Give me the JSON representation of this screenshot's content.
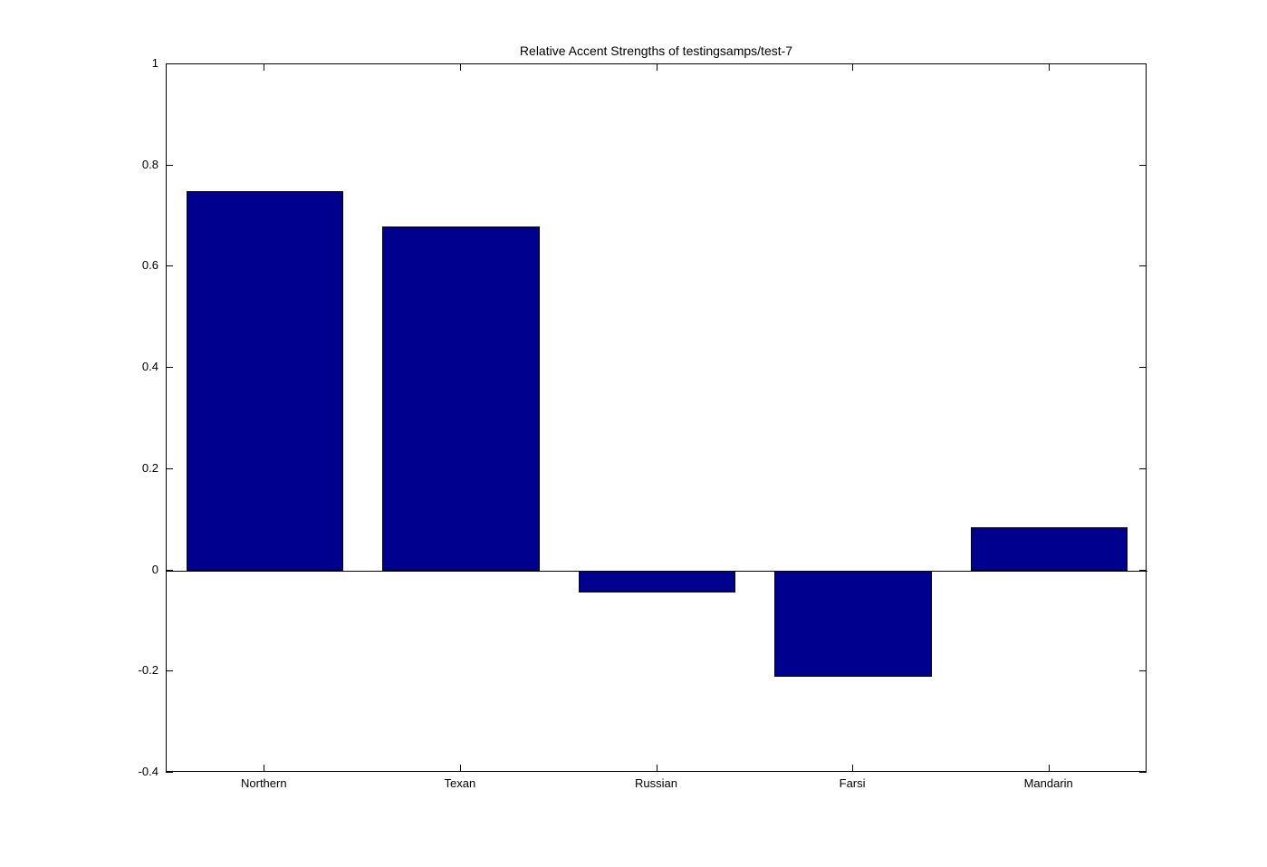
{
  "figure": {
    "background": "#ffffff"
  },
  "chart_data": {
    "type": "bar",
    "title": "Relative Accent Strengths of testingsamps/test-7",
    "categories": [
      "Northern",
      "Texan",
      "Russian",
      "Farsi",
      "Mandarin"
    ],
    "values": [
      0.75,
      0.68,
      -0.043,
      -0.21,
      0.085
    ],
    "xlabel": "",
    "ylabel": "",
    "ylim": [
      -0.4,
      1
    ],
    "yticks": [
      -0.4,
      -0.2,
      0,
      0.2,
      0.4,
      0.6,
      0.8,
      1
    ],
    "ytick_labels": [
      "-0.4",
      "-0.2",
      "0",
      "0.2",
      "0.4",
      "0.6",
      "0.8",
      "1"
    ],
    "bar_width_fraction": 0.8,
    "bar_color": "#00008F",
    "bar_edge_color": "#000000",
    "axis_color": "#000000",
    "grid": false,
    "legend": null,
    "baseline_value": 0
  }
}
